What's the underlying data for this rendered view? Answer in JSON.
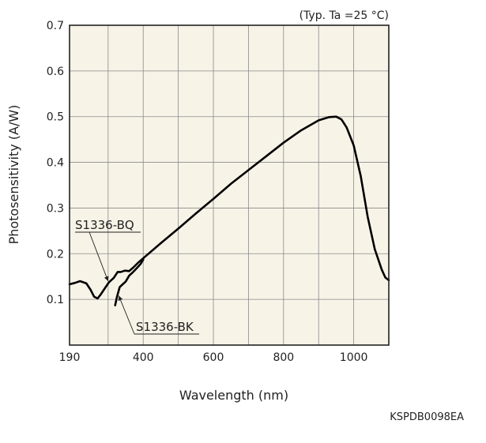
{
  "chart_data": {
    "type": "line",
    "title": "",
    "condition_note": "(Typ. Ta =25 °C)",
    "xlabel": "Wavelength (nm)",
    "ylabel": "Photosensitivity (A/W)",
    "xlim": [
      190,
      1100
    ],
    "ylim": [
      0,
      0.7
    ],
    "x_ticks": [
      190,
      400,
      600,
      800,
      1000
    ],
    "x_tick_labels": [
      "190",
      "400",
      "600",
      "800",
      "1000"
    ],
    "y_ticks": [
      0.1,
      0.2,
      0.3,
      0.4,
      0.5,
      0.6,
      0.7
    ],
    "y_tick_labels": [
      "0.1",
      "0.2",
      "0.3",
      "0.4",
      "0.5",
      "0.6",
      "0.7"
    ],
    "grid": true,
    "background_color": "#f7f3e7",
    "line_color": "#000000",
    "code": "KSPDB0098EA",
    "series": [
      {
        "name": "S1336-BQ",
        "x": [
          190,
          205,
          220,
          238,
          250,
          260,
          270,
          280,
          293,
          303,
          316,
          327,
          336,
          348,
          360,
          372,
          385,
          400,
          450,
          500,
          550,
          600,
          650,
          700,
          750,
          800,
          850,
          900,
          930,
          950,
          965,
          980,
          1000,
          1020,
          1040,
          1060,
          1080,
          1090,
          1100
        ],
        "y": [
          0.133,
          0.136,
          0.14,
          0.135,
          0.121,
          0.106,
          0.102,
          0.112,
          0.127,
          0.138,
          0.147,
          0.16,
          0.16,
          0.163,
          0.162,
          0.17,
          0.18,
          0.19,
          0.223,
          0.255,
          0.288,
          0.32,
          0.353,
          0.383,
          0.413,
          0.443,
          0.47,
          0.492,
          0.499,
          0.5,
          0.494,
          0.476,
          0.437,
          0.37,
          0.28,
          0.21,
          0.165,
          0.148,
          0.142
        ]
      },
      {
        "name": "S1336-BK",
        "x": [
          320,
          325,
          333,
          340,
          350,
          360,
          370,
          380,
          393,
          400
        ],
        "y": [
          0.087,
          0.105,
          0.127,
          0.132,
          0.139,
          0.152,
          0.159,
          0.167,
          0.178,
          0.187
        ]
      }
    ],
    "annotations": [
      {
        "series": "S1336-BQ",
        "label": "S1336-BQ"
      },
      {
        "series": "S1336-BK",
        "label": "S1336-BK"
      }
    ]
  }
}
